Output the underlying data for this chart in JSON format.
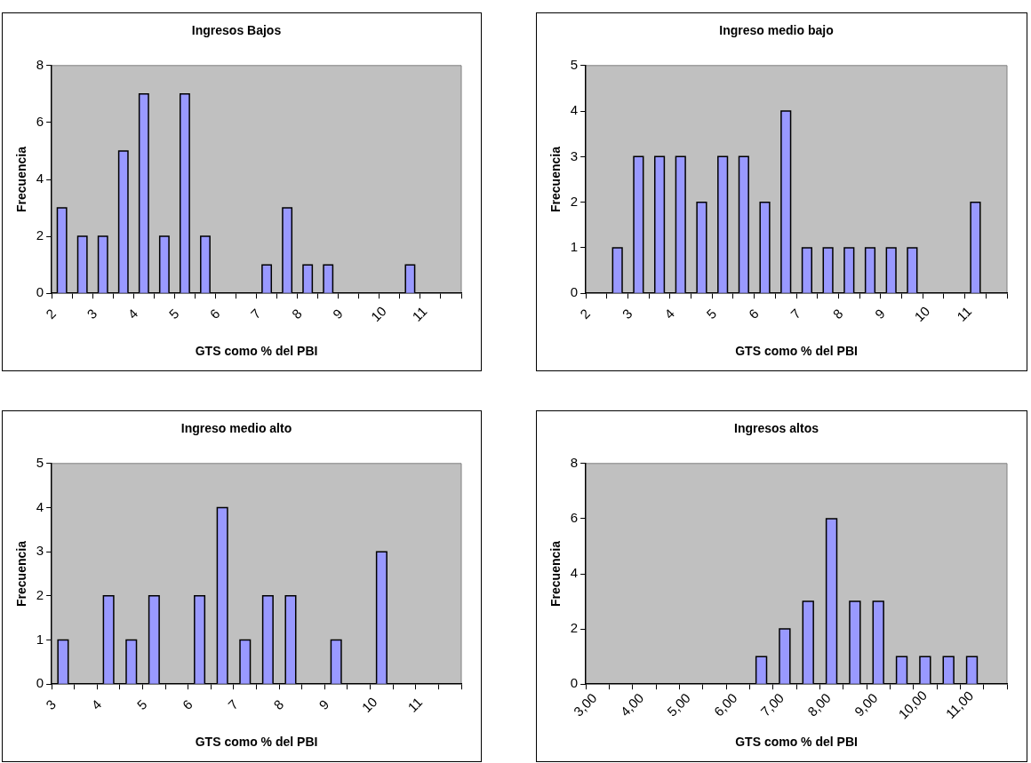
{
  "chart_data": [
    {
      "type": "bar",
      "title": "Ingresos Bajos",
      "xlabel": "GTS como % del PBI",
      "ylabel": "Frecuencia",
      "color": "#9999ff",
      "x": [
        2.25,
        2.75,
        3.25,
        3.75,
        4.25,
        4.75,
        5.25,
        5.75,
        6.25,
        6.75,
        7.25,
        7.75,
        8.25,
        8.75,
        9.25,
        9.75,
        10.25,
        10.75,
        11.25,
        11.75
      ],
      "values": [
        3,
        2,
        2,
        5,
        7,
        2,
        7,
        2,
        0,
        0,
        1,
        3,
        1,
        1,
        0,
        0,
        0,
        1,
        0,
        0
      ],
      "xlim": [
        2,
        12
      ],
      "xticks": [
        2,
        {
          "value": 2.5,
          "label": null
        },
        3,
        {
          "value": 3.5,
          "label": null
        },
        4,
        {
          "value": 4.5,
          "label": null
        },
        5,
        {
          "value": 5.5,
          "label": null
        },
        6,
        {
          "value": 6.5,
          "label": null
        },
        7,
        {
          "value": 7.5,
          "label": null
        },
        8,
        {
          "value": 8.5,
          "label": null
        },
        9,
        {
          "value": 9.5,
          "label": null
        },
        10,
        {
          "value": 10.5,
          "label": null
        },
        11,
        {
          "value": 11.5,
          "label": null
        },
        {
          "value": 12,
          "label": null
        }
      ],
      "ylim": [
        0,
        8
      ],
      "yticks": [
        0,
        2,
        4,
        6,
        8
      ],
      "grid": false,
      "legend": false
    },
    {
      "type": "bar",
      "title": "Ingreso medio bajo",
      "xlabel": "GTS como % del PBI",
      "ylabel": "Frecuencia",
      "color": "#9999ff",
      "x": [
        2.25,
        2.75,
        3.25,
        3.75,
        4.25,
        4.75,
        5.25,
        5.75,
        6.25,
        6.75,
        7.25,
        7.75,
        8.25,
        8.75,
        9.25,
        9.75,
        10.25,
        10.75,
        11.25,
        11.75
      ],
      "values": [
        0,
        1,
        3,
        3,
        3,
        2,
        3,
        3,
        2,
        4,
        1,
        1,
        1,
        1,
        1,
        1,
        0,
        0,
        2,
        0
      ],
      "xlim": [
        2,
        12
      ],
      "xticks": [
        2,
        {
          "value": 2.5,
          "label": null
        },
        3,
        {
          "value": 3.5,
          "label": null
        },
        4,
        {
          "value": 4.5,
          "label": null
        },
        5,
        {
          "value": 5.5,
          "label": null
        },
        6,
        {
          "value": 6.5,
          "label": null
        },
        7,
        {
          "value": 7.5,
          "label": null
        },
        8,
        {
          "value": 8.5,
          "label": null
        },
        9,
        {
          "value": 9.5,
          "label": null
        },
        10,
        {
          "value": 10.5,
          "label": null
        },
        11,
        {
          "value": 11.5,
          "label": null
        },
        {
          "value": 12,
          "label": null
        }
      ],
      "ylim": [
        0,
        5
      ],
      "yticks": [
        0,
        1,
        2,
        3,
        4,
        5
      ],
      "grid": false,
      "legend": false
    },
    {
      "type": "bar",
      "title": "Ingreso medio alto",
      "xlabel": "GTS como % del PBI",
      "ylabel": "Frecuencia",
      "color": "#9999ff",
      "x": [
        3.25,
        3.75,
        4.25,
        4.75,
        5.25,
        5.75,
        6.25,
        6.75,
        7.25,
        7.75,
        8.25,
        8.75,
        9.25,
        9.75,
        10.25,
        10.75,
        11.25,
        11.75
      ],
      "values": [
        1,
        0,
        2,
        1,
        2,
        0,
        2,
        4,
        1,
        2,
        2,
        0,
        1,
        0,
        3,
        0,
        0,
        0
      ],
      "xlim": [
        3,
        12
      ],
      "xticks": [
        3,
        {
          "value": 3.5,
          "label": null
        },
        4,
        {
          "value": 4.5,
          "label": null
        },
        5,
        {
          "value": 5.5,
          "label": null
        },
        6,
        {
          "value": 6.5,
          "label": null
        },
        7,
        {
          "value": 7.5,
          "label": null
        },
        8,
        {
          "value": 8.5,
          "label": null
        },
        9,
        {
          "value": 9.5,
          "label": null
        },
        10,
        {
          "value": 10.5,
          "label": null
        },
        11,
        {
          "value": 11.5,
          "label": null
        },
        {
          "value": 12,
          "label": null
        }
      ],
      "ylim": [
        0,
        5
      ],
      "yticks": [
        0,
        1,
        2,
        3,
        4,
        5
      ],
      "grid": false,
      "legend": false
    },
    {
      "type": "bar",
      "title": "Ingresos altos",
      "xlabel": "GTS como % del PBI",
      "ylabel": "Frecuencia",
      "color": "#9999ff",
      "x": [
        3.25,
        3.75,
        4.25,
        4.75,
        5.25,
        5.75,
        6.25,
        6.75,
        7.25,
        7.75,
        8.25,
        8.75,
        9.25,
        9.75,
        10.25,
        10.75,
        11.25,
        11.75
      ],
      "values": [
        0,
        0,
        0,
        0,
        0,
        0,
        0,
        1,
        2,
        3,
        6,
        3,
        3,
        1,
        1,
        1,
        1,
        0
      ],
      "xlim": [
        3,
        12
      ],
      "xticks": [
        {
          "value": 3,
          "label": "3,00"
        },
        {
          "value": 3.5,
          "label": null
        },
        {
          "value": 4,
          "label": "4,00"
        },
        {
          "value": 4.5,
          "label": null
        },
        {
          "value": 5,
          "label": "5,00"
        },
        {
          "value": 5.5,
          "label": null
        },
        {
          "value": 6,
          "label": "6,00"
        },
        {
          "value": 6.5,
          "label": null
        },
        {
          "value": 7,
          "label": "7,00"
        },
        {
          "value": 7.5,
          "label": null
        },
        {
          "value": 8,
          "label": "8,00"
        },
        {
          "value": 8.5,
          "label": null
        },
        {
          "value": 9,
          "label": "9,00"
        },
        {
          "value": 9.5,
          "label": null
        },
        {
          "value": 10,
          "label": "10,00"
        },
        {
          "value": 10.5,
          "label": null
        },
        {
          "value": 11,
          "label": "11,00"
        },
        {
          "value": 11.5,
          "label": null
        },
        {
          "value": 12,
          "label": null
        }
      ],
      "ylim": [
        0,
        8
      ],
      "yticks": [
        0,
        2,
        4,
        6,
        8
      ],
      "grid": false,
      "legend": false
    }
  ]
}
